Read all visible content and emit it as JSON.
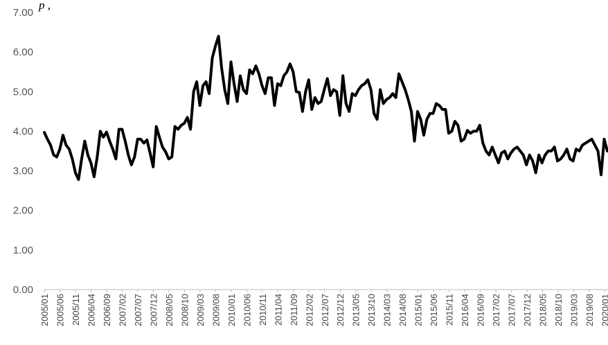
{
  "chart_data": {
    "type": "line",
    "title": "",
    "partial_caption": "p          ,",
    "xlabel": "",
    "ylabel": "",
    "ylim": [
      0,
      7
    ],
    "yticks": [
      "0.00",
      "1.00",
      "2.00",
      "3.00",
      "4.00",
      "5.00",
      "6.00",
      "7.00"
    ],
    "xticks": [
      "2005/01",
      "2005/06",
      "2005/11",
      "2006/04",
      "2006/09",
      "2007/02",
      "2007/07",
      "2007/12",
      "2008/05",
      "2008/10",
      "2009/03",
      "2009/08",
      "2010/01",
      "2010/06",
      "2010/11",
      "2011/04",
      "2011/09",
      "2012/02",
      "2012/07",
      "2012/12",
      "2013/05",
      "2013/10",
      "2014/03",
      "2014/08",
      "2015/01",
      "2015/06",
      "2015/11",
      "2016/04",
      "2016/09",
      "2017/02",
      "2017/07",
      "2017/12",
      "2018/05",
      "2018/10",
      "2019/03",
      "2019/08",
      "2020/01"
    ],
    "grid": false,
    "legend": "none",
    "line_color": "#000000",
    "x_start": "2005/01",
    "x_end": "2020/02",
    "series": [
      {
        "values": [
          3.97,
          3.8,
          3.65,
          3.4,
          3.35,
          3.55,
          3.9,
          3.65,
          3.55,
          3.3,
          2.95,
          2.78,
          3.3,
          3.75,
          3.4,
          3.2,
          2.85,
          3.35,
          4.0,
          3.85,
          3.98,
          3.75,
          3.55,
          3.3,
          4.05,
          4.05,
          3.75,
          3.4,
          3.15,
          3.35,
          3.8,
          3.8,
          3.7,
          3.78,
          3.45,
          3.1,
          4.12,
          3.85,
          3.6,
          3.48,
          3.3,
          3.35,
          4.12,
          4.05,
          4.15,
          4.2,
          4.35,
          4.05,
          5.0,
          5.25,
          4.65,
          5.15,
          5.25,
          4.95,
          5.85,
          6.15,
          6.4,
          5.6,
          5.05,
          4.7,
          5.75,
          5.2,
          4.75,
          5.4,
          5.05,
          4.95,
          5.55,
          5.45,
          5.65,
          5.45,
          5.15,
          4.95,
          5.35,
          5.35,
          4.65,
          5.2,
          5.15,
          5.4,
          5.5,
          5.7,
          5.5,
          5.0,
          4.98,
          4.5,
          5.0,
          5.3,
          4.55,
          4.85,
          4.7,
          4.75,
          5.05,
          5.33,
          4.9,
          5.05,
          5.0,
          4.4,
          5.4,
          4.7,
          4.5,
          4.95,
          4.9,
          5.05,
          5.15,
          5.2,
          5.3,
          5.05,
          4.45,
          4.3,
          5.05,
          4.7,
          4.8,
          4.85,
          4.95,
          4.85,
          5.45,
          5.25,
          5.05,
          4.8,
          4.5,
          3.75,
          4.5,
          4.3,
          3.9,
          4.3,
          4.45,
          4.45,
          4.7,
          4.65,
          4.55,
          4.55,
          3.95,
          4.0,
          4.25,
          4.15,
          3.75,
          3.8,
          4.02,
          3.95,
          4.0,
          4.0,
          4.15,
          3.7,
          3.5,
          3.4,
          3.6,
          3.4,
          3.2,
          3.45,
          3.5,
          3.3,
          3.45,
          3.55,
          3.6,
          3.5,
          3.4,
          3.15,
          3.4,
          3.25,
          2.95,
          3.4,
          3.2,
          3.4,
          3.5,
          3.5,
          3.6,
          3.25,
          3.3,
          3.4,
          3.55,
          3.3,
          3.25,
          3.55,
          3.5,
          3.65,
          3.7,
          3.75,
          3.8,
          3.65,
          3.5,
          2.9,
          3.8,
          3.5
        ]
      }
    ]
  }
}
